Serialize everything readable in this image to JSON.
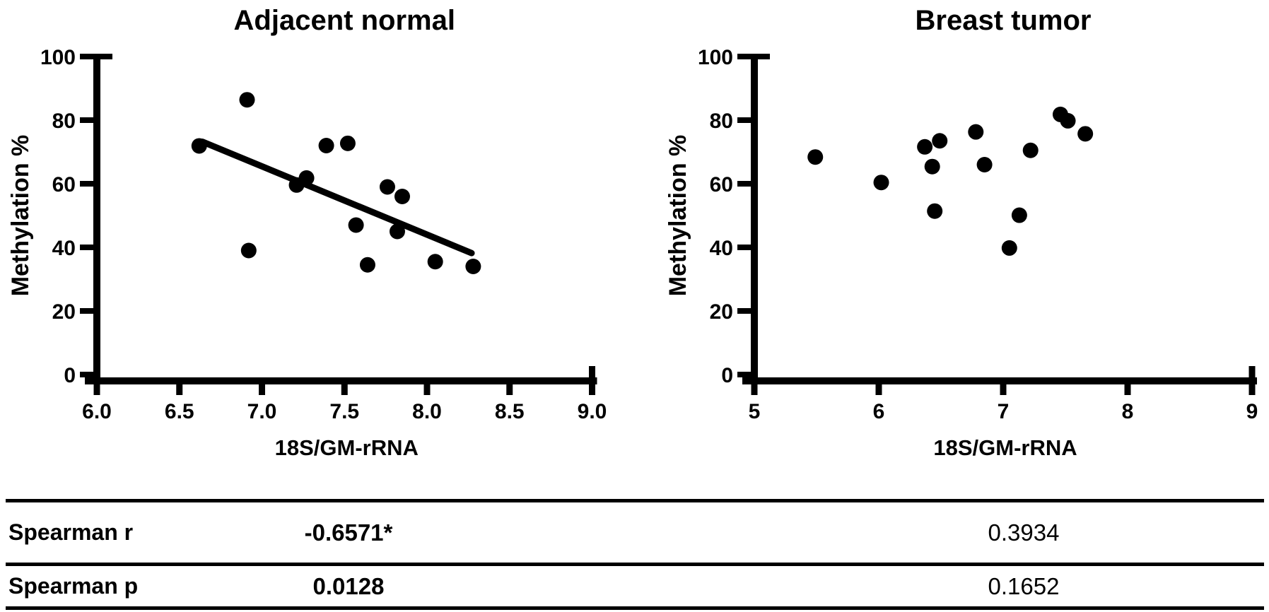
{
  "figure": {
    "background": "#ffffff",
    "ink": "#000000"
  },
  "chart_data": [
    {
      "type": "scatter",
      "title": "Adjacent normal",
      "xlabel": "18S/GM-rRNA",
      "ylabel": "Methylation %",
      "xlim": [
        6.0,
        9.0
      ],
      "ylim": [
        0,
        100
      ],
      "xticks": [
        6.0,
        6.5,
        7.0,
        7.5,
        8.0,
        8.5,
        9.0
      ],
      "xtick_labels": [
        "6.0",
        "6.5",
        "7.0",
        "7.5",
        "8.0",
        "8.5",
        "9.0"
      ],
      "yticks": [
        0,
        20,
        40,
        60,
        80,
        100
      ],
      "ytick_labels": [
        "0",
        "20",
        "40",
        "60",
        "80",
        "100"
      ],
      "grid": false,
      "legend": "none",
      "marker_color": "#000000",
      "points": [
        [
          6.62,
          71.9
        ],
        [
          6.91,
          86.4
        ],
        [
          6.92,
          39.0
        ],
        [
          7.21,
          59.6
        ],
        [
          7.27,
          61.8
        ],
        [
          7.39,
          72.0
        ],
        [
          7.52,
          72.7
        ],
        [
          7.57,
          47.0
        ],
        [
          7.64,
          34.5
        ],
        [
          7.76,
          59.0
        ],
        [
          7.82,
          45.0
        ],
        [
          7.85,
          56.0
        ],
        [
          8.05,
          35.5
        ],
        [
          8.28,
          34.0
        ]
      ],
      "trend_line": {
        "x1": 6.64,
        "y1": 73.2,
        "x2": 8.27,
        "y2": 38.2
      }
    },
    {
      "type": "scatter",
      "title": "Breast tumor",
      "xlabel": "18S/GM-rRNA",
      "ylabel": "Methylation %",
      "xlim": [
        5,
        9
      ],
      "ylim": [
        0,
        100
      ],
      "xticks": [
        5,
        6,
        7,
        8,
        9
      ],
      "xtick_labels": [
        "5",
        "6",
        "7",
        "8",
        "9"
      ],
      "yticks": [
        0,
        20,
        40,
        60,
        80,
        100
      ],
      "ytick_labels": [
        "0",
        "20",
        "40",
        "60",
        "80",
        "100"
      ],
      "grid": false,
      "legend": "none",
      "marker_color": "#000000",
      "points": [
        [
          5.49,
          68.4
        ],
        [
          6.02,
          60.4
        ],
        [
          6.37,
          71.6
        ],
        [
          6.43,
          65.4
        ],
        [
          6.45,
          51.4
        ],
        [
          6.49,
          73.5
        ],
        [
          6.78,
          76.3
        ],
        [
          6.85,
          66.0
        ],
        [
          7.05,
          39.8
        ],
        [
          7.13,
          50.1
        ],
        [
          7.22,
          70.5
        ],
        [
          7.46,
          81.8
        ],
        [
          7.52,
          79.8
        ],
        [
          7.66,
          75.7
        ]
      ],
      "trend_line": null
    }
  ],
  "table": {
    "rows": [
      {
        "label": "Spearman r",
        "adjacent_normal": "-0.6571*",
        "breast_tumor": "0.3934"
      },
      {
        "label": "Spearman p",
        "adjacent_normal": "0.0128",
        "breast_tumor": "0.1652"
      }
    ]
  }
}
